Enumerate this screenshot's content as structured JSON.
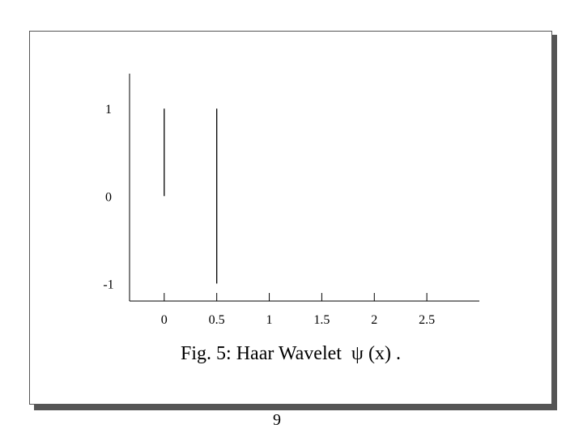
{
  "caption": "Fig. 5: Haar Wavelet  ψ (x) .",
  "page_number": "9",
  "chart_data": {
    "type": "line",
    "title": "",
    "xlabel": "",
    "ylabel": "",
    "x_ticks": [
      "0",
      "0.5",
      "1",
      "1.5",
      "2",
      "2.5"
    ],
    "x_tick_values": [
      0,
      0.5,
      1,
      1.5,
      2,
      2.5
    ],
    "y_ticks": [
      "1",
      "0",
      "-1"
    ],
    "y_tick_values": [
      1,
      0,
      -1
    ],
    "xlim": [
      -0.33,
      3.0
    ],
    "ylim": [
      -1.2,
      1.4
    ],
    "grid": false,
    "line_color": "#000000",
    "series": [
      {
        "segments": [
          {
            "x": [
              0,
              0
            ],
            "y": [
              0,
              1
            ]
          },
          {
            "x": [
              0.5,
              0.5
            ],
            "y": [
              1,
              -1
            ]
          }
        ]
      }
    ]
  }
}
